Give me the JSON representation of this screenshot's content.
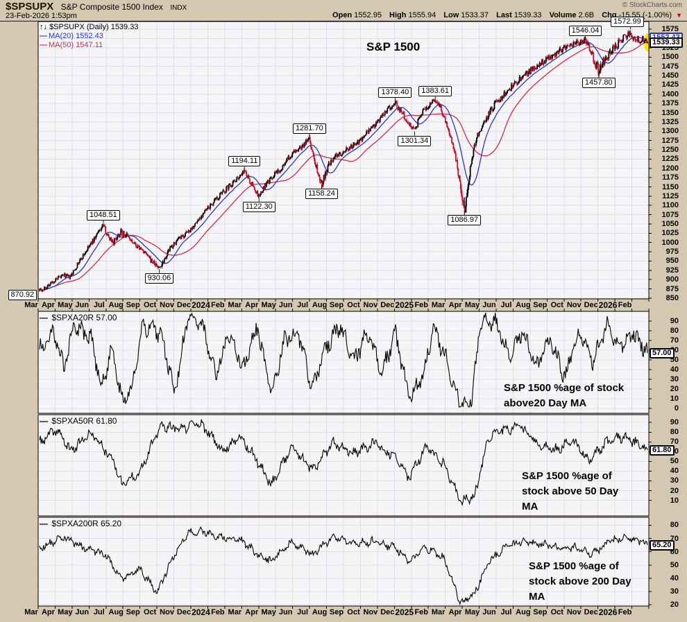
{
  "ui": {
    "dash": "—",
    "arrows_icon": "↑↓",
    "down_triangle": "▼"
  },
  "header": {
    "symbol": "$SPSUPX",
    "name": "S&P Composite 1500 Index",
    "exchange": "INDX",
    "datetime": "23-Feb-2026 1:53pm",
    "copyright": "© StockCharts.com",
    "quote": {
      "open_label": "Open",
      "open": "1552.95",
      "high_label": "High",
      "high": "1555.94",
      "low_label": "Low",
      "low": "1533.37",
      "last_label": "Last",
      "last": "1539.33",
      "volume_label": "Volume",
      "volume": "2.6B",
      "chg_label": "Chg",
      "chg": "-15.55 (-1.00%)"
    }
  },
  "colors": {
    "bg": "#d4c8b1",
    "plot_bg": "#f5f5f7",
    "grid": "#dfdfe9",
    "up": "#000000",
    "down": "#c4102f",
    "ma20": "#2b35c0",
    "ma50": "#d5294d",
    "highlight": "#ffe600",
    "neg": "#b00020",
    "muted": "#55555e"
  },
  "chart_data": [
    {
      "type": "candlestick",
      "symbol": "$SPSUPX",
      "timeframe": "Daily",
      "legend_title": "$SPSUPX (Daily) 1539.33",
      "legend_ma20": "MA(20) 1552.43",
      "legend_ma50": "MA(50) 1547.11",
      "title": "S&P 1500",
      "last": 1539.33,
      "last_label": "1539.33",
      "ma20": 1552.43,
      "ma20_axis_label": "1552.43",
      "ma50": 1547.11,
      "grid": true,
      "legend_position": "top-left",
      "ylim": [
        848,
        1596
      ],
      "y_ticks": [
        850,
        875,
        900,
        925,
        950,
        975,
        1000,
        1025,
        1050,
        1075,
        1100,
        1125,
        1150,
        1175,
        1200,
        1225,
        1250,
        1275,
        1300,
        1325,
        1350,
        1375,
        1400,
        1425,
        1450,
        1475,
        1500,
        1525,
        1550,
        1575
      ],
      "x_tick_labels": [
        "Mar",
        "Apr",
        "May",
        "Jun",
        "Jul",
        "Aug",
        "Sep",
        "Oct",
        "Nov",
        "Dec",
        "2024",
        "Feb",
        "Mar",
        "Apr",
        "May",
        "Jun",
        "Jul",
        "Aug",
        "Sep",
        "Oct",
        "Nov",
        "Dec",
        "2025",
        "Feb",
        "Mar",
        "Apr",
        "May",
        "Jun",
        "Jul",
        "Aug",
        "Sep",
        "Oct",
        "Nov",
        "Dec",
        "2026",
        "Feb"
      ],
      "key_points": [
        {
          "label": "870.92",
          "f": 0.004,
          "price": 870.92,
          "side": "below",
          "dx": -28
        },
        {
          "label": "1048.51",
          "f": 0.105,
          "price": 1048.51,
          "side": "above"
        },
        {
          "label": "930.06",
          "f": 0.197,
          "price": 930.06,
          "side": "below"
        },
        {
          "label": "1194.11",
          "f": 0.337,
          "price": 1194.11,
          "side": "above"
        },
        {
          "label": "1122.30",
          "f": 0.361,
          "price": 1122.3,
          "side": "below"
        },
        {
          "label": "1281.70",
          "f": 0.444,
          "price": 1281.7,
          "side": "above"
        },
        {
          "label": "1158.24",
          "f": 0.464,
          "price": 1158.24,
          "side": "below"
        },
        {
          "label": "1378.40",
          "f": 0.585,
          "price": 1378.4,
          "side": "above"
        },
        {
          "label": "1301.34",
          "f": 0.617,
          "price": 1301.34,
          "side": "below"
        },
        {
          "label": "1383.61",
          "f": 0.651,
          "price": 1383.61,
          "side": "above"
        },
        {
          "label": "1086.97",
          "f": 0.699,
          "price": 1086.97,
          "side": "below"
        },
        {
          "label": "1546.04",
          "f": 0.898,
          "price": 1546.04,
          "side": "above"
        },
        {
          "label": "1457.80",
          "f": 0.92,
          "price": 1457.8,
          "side": "below"
        },
        {
          "label": "1572.99",
          "f": 0.972,
          "price": 1572.99,
          "side": "above"
        }
      ],
      "anchors": [
        [
          0,
          878
        ],
        [
          0.004,
          871
        ],
        [
          0.02,
          892
        ],
        [
          0.04,
          912
        ],
        [
          0.05,
          905
        ],
        [
          0.065,
          948
        ],
        [
          0.08,
          985
        ],
        [
          0.09,
          1010
        ],
        [
          0.105,
          1048
        ],
        [
          0.112,
          1018
        ],
        [
          0.122,
          1002
        ],
        [
          0.132,
          1030
        ],
        [
          0.142,
          1020
        ],
        [
          0.155,
          996
        ],
        [
          0.17,
          978
        ],
        [
          0.183,
          952
        ],
        [
          0.197,
          931
        ],
        [
          0.205,
          955
        ],
        [
          0.215,
          985
        ],
        [
          0.225,
          1002
        ],
        [
          0.24,
          1022
        ],
        [
          0.255,
          1048
        ],
        [
          0.27,
          1080
        ],
        [
          0.285,
          1105
        ],
        [
          0.3,
          1132
        ],
        [
          0.315,
          1158
        ],
        [
          0.337,
          1193
        ],
        [
          0.346,
          1165
        ],
        [
          0.361,
          1123
        ],
        [
          0.372,
          1155
        ],
        [
          0.385,
          1180
        ],
        [
          0.4,
          1205
        ],
        [
          0.415,
          1238
        ],
        [
          0.43,
          1258
        ],
        [
          0.444,
          1280
        ],
        [
          0.451,
          1230
        ],
        [
          0.464,
          1160
        ],
        [
          0.475,
          1205
        ],
        [
          0.488,
          1235
        ],
        [
          0.5,
          1245
        ],
        [
          0.515,
          1262
        ],
        [
          0.53,
          1280
        ],
        [
          0.545,
          1305
        ],
        [
          0.56,
          1330
        ],
        [
          0.572,
          1360
        ],
        [
          0.585,
          1377
        ],
        [
          0.598,
          1345
        ],
        [
          0.617,
          1303
        ],
        [
          0.63,
          1355
        ],
        [
          0.64,
          1370
        ],
        [
          0.651,
          1382
        ],
        [
          0.658,
          1368
        ],
        [
          0.665,
          1340
        ],
        [
          0.673,
          1300
        ],
        [
          0.682,
          1248
        ],
        [
          0.69,
          1180
        ],
        [
          0.699,
          1090
        ],
        [
          0.703,
          1125
        ],
        [
          0.71,
          1220
        ],
        [
          0.718,
          1280
        ],
        [
          0.727,
          1310
        ],
        [
          0.737,
          1342
        ],
        [
          0.75,
          1375
        ],
        [
          0.765,
          1402
        ],
        [
          0.78,
          1425
        ],
        [
          0.8,
          1452
        ],
        [
          0.82,
          1478
        ],
        [
          0.84,
          1502
        ],
        [
          0.86,
          1520
        ],
        [
          0.88,
          1535
        ],
        [
          0.898,
          1545
        ],
        [
          0.908,
          1512
        ],
        [
          0.92,
          1459
        ],
        [
          0.93,
          1492
        ],
        [
          0.942,
          1520
        ],
        [
          0.955,
          1542
        ],
        [
          0.965,
          1558
        ],
        [
          0.972,
          1565
        ],
        [
          0.978,
          1552
        ],
        [
          0.985,
          1545
        ],
        [
          0.992,
          1552
        ],
        [
          1,
          1539
        ]
      ]
    },
    {
      "type": "line",
      "symbol": "$SPXA20R",
      "legend": "$SPXA20R 57.00",
      "last": 57.0,
      "last_label": "57.00",
      "note_lines": [
        "S&P 1500 %age of stock",
        "above20 Day MA"
      ],
      "grid": true,
      "ylim": [
        -5,
        100
      ],
      "y_ticks": [
        0,
        10,
        20,
        30,
        40,
        50,
        60,
        70,
        80,
        90
      ],
      "noise": 7,
      "anchors": [
        [
          0,
          60
        ],
        [
          0.023,
          78
        ],
        [
          0.04,
          42
        ],
        [
          0.057,
          85
        ],
        [
          0.085,
          71
        ],
        [
          0.102,
          21
        ],
        [
          0.119,
          64
        ],
        [
          0.136,
          6
        ],
        [
          0.153,
          24
        ],
        [
          0.17,
          85
        ],
        [
          0.199,
          78
        ],
        [
          0.222,
          17
        ],
        [
          0.244,
          92
        ],
        [
          0.267,
          89
        ],
        [
          0.29,
          35
        ],
        [
          0.312,
          78
        ],
        [
          0.335,
          42
        ],
        [
          0.358,
          85
        ],
        [
          0.381,
          14
        ],
        [
          0.403,
          71
        ],
        [
          0.426,
          78
        ],
        [
          0.449,
          21
        ],
        [
          0.472,
          64
        ],
        [
          0.494,
          85
        ],
        [
          0.517,
          49
        ],
        [
          0.54,
          78
        ],
        [
          0.563,
          35
        ],
        [
          0.585,
          78
        ],
        [
          0.608,
          10
        ],
        [
          0.631,
          35
        ],
        [
          0.648,
          85
        ],
        [
          0.67,
          49
        ],
        [
          0.693,
          3
        ],
        [
          0.71,
          8
        ],
        [
          0.727,
          92
        ],
        [
          0.75,
          89
        ],
        [
          0.773,
          56
        ],
        [
          0.795,
          78
        ],
        [
          0.818,
          42
        ],
        [
          0.841,
          71
        ],
        [
          0.864,
          31
        ],
        [
          0.886,
          78
        ],
        [
          0.909,
          49
        ],
        [
          0.932,
          85
        ],
        [
          0.955,
          64
        ],
        [
          0.977,
          78
        ],
        [
          1,
          57
        ]
      ]
    },
    {
      "type": "line",
      "symbol": "$SPXA50R",
      "legend": "$SPXA50R 61.80",
      "last": 61.8,
      "last_label": "61.80",
      "note_lines": [
        "S&P 1500 %age of",
        "stock above 50 Day",
        "MA"
      ],
      "grid": true,
      "ylim": [
        -6,
        98
      ],
      "y_ticks": [
        10,
        20,
        30,
        40,
        50,
        60,
        70,
        80,
        90
      ],
      "noise": 4,
      "anchors": [
        [
          0,
          69
        ],
        [
          0.028,
          83
        ],
        [
          0.051,
          61
        ],
        [
          0.085,
          79
        ],
        [
          0.119,
          54
        ],
        [
          0.136,
          26
        ],
        [
          0.165,
          40
        ],
        [
          0.199,
          86
        ],
        [
          0.233,
          83
        ],
        [
          0.261,
          90
        ],
        [
          0.278,
          79
        ],
        [
          0.301,
          61
        ],
        [
          0.33,
          76
        ],
        [
          0.358,
          51
        ],
        [
          0.381,
          26
        ],
        [
          0.415,
          65
        ],
        [
          0.449,
          40
        ],
        [
          0.483,
          69
        ],
        [
          0.517,
          58
        ],
        [
          0.551,
          69
        ],
        [
          0.585,
          54
        ],
        [
          0.608,
          33
        ],
        [
          0.636,
          65
        ],
        [
          0.665,
          47
        ],
        [
          0.693,
          8
        ],
        [
          0.716,
          15
        ],
        [
          0.739,
          76
        ],
        [
          0.767,
          83
        ],
        [
          0.79,
          86
        ],
        [
          0.818,
          69
        ],
        [
          0.847,
          61
        ],
        [
          0.875,
          72
        ],
        [
          0.903,
          51
        ],
        [
          0.932,
          69
        ],
        [
          0.96,
          76
        ],
        [
          0.983,
          69
        ],
        [
          1,
          61.8
        ]
      ]
    },
    {
      "type": "line",
      "symbol": "$SPXA200R",
      "legend": "$SPXA200R 65.20",
      "last": 65.2,
      "last_label": "65.20",
      "note_lines": [
        "S&P 1500 %age of",
        "stock above 200 Day",
        "MA"
      ],
      "grid": true,
      "ylim": [
        19,
        86
      ],
      "y_ticks": [
        20,
        30,
        40,
        50,
        60,
        70,
        80
      ],
      "noise": 2.2,
      "anchors": [
        [
          0,
          63
        ],
        [
          0.04,
          71
        ],
        [
          0.074,
          63
        ],
        [
          0.108,
          58
        ],
        [
          0.136,
          39
        ],
        [
          0.165,
          47
        ],
        [
          0.193,
          29
        ],
        [
          0.222,
          58
        ],
        [
          0.244,
          74
        ],
        [
          0.267,
          76
        ],
        [
          0.301,
          71
        ],
        [
          0.335,
          68
        ],
        [
          0.358,
          58
        ],
        [
          0.381,
          53
        ],
        [
          0.415,
          68
        ],
        [
          0.449,
          58
        ],
        [
          0.483,
          71
        ],
        [
          0.517,
          66
        ],
        [
          0.551,
          68
        ],
        [
          0.585,
          63
        ],
        [
          0.608,
          53
        ],
        [
          0.636,
          63
        ],
        [
          0.665,
          55
        ],
        [
          0.693,
          21
        ],
        [
          0.716,
          29
        ],
        [
          0.739,
          53
        ],
        [
          0.767,
          63
        ],
        [
          0.795,
          68
        ],
        [
          0.824,
          66
        ],
        [
          0.852,
          63
        ],
        [
          0.881,
          63
        ],
        [
          0.909,
          58
        ],
        [
          0.938,
          68
        ],
        [
          0.966,
          71
        ],
        [
          0.983,
          69
        ],
        [
          1,
          65.2
        ]
      ]
    }
  ]
}
